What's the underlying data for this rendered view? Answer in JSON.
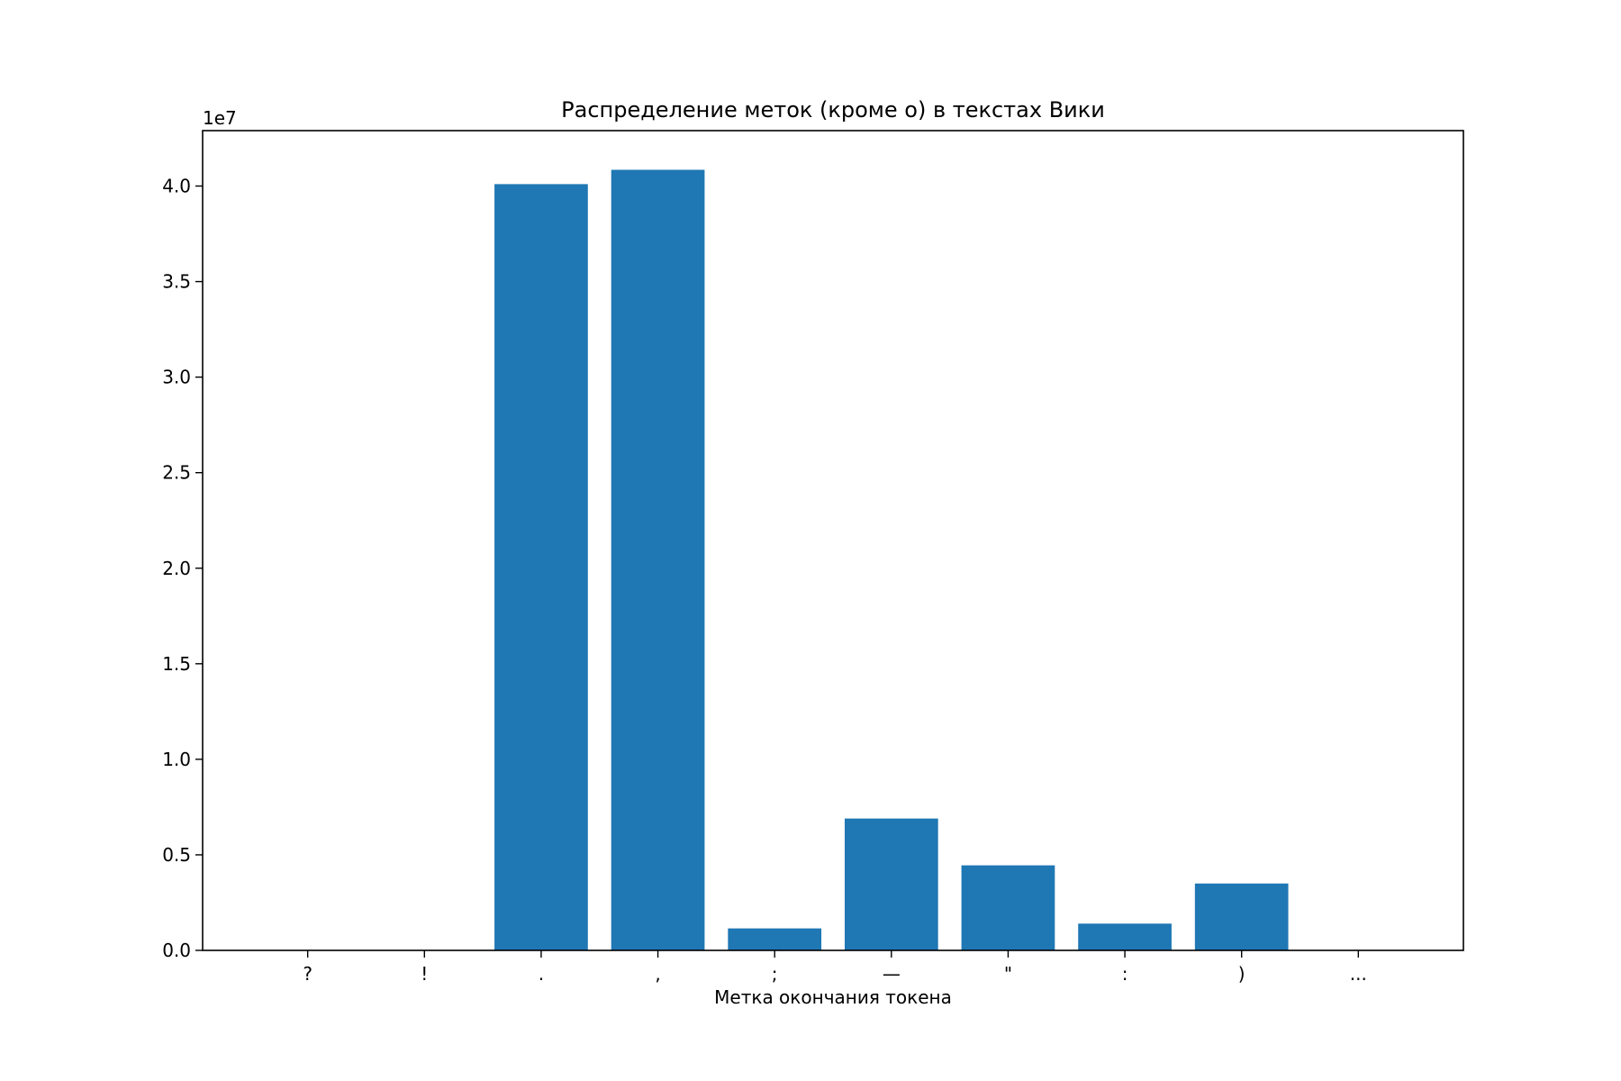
{
  "chart_data": {
    "type": "bar",
    "title": "Распределение меток (кроме o) в текстах Вики",
    "xlabel": "Метка окончания токена",
    "ylabel": "",
    "y_offset_label": "1e7",
    "categories": [
      "?",
      "!",
      ".",
      ",",
      ";",
      "—",
      "\"",
      ":",
      ")",
      "..."
    ],
    "values": [
      15000,
      10000,
      40100000,
      40850000,
      1150000,
      6900000,
      4450000,
      1400000,
      3500000,
      5000
    ],
    "ylim": [
      0,
      42900000
    ],
    "yticks": [
      0,
      5000000,
      10000000,
      15000000,
      20000000,
      25000000,
      30000000,
      35000000,
      40000000
    ],
    "ytick_labels": [
      "0.0",
      "0.5",
      "1.0",
      "1.5",
      "2.0",
      "2.5",
      "3.0",
      "3.5",
      "4.0"
    ],
    "bar_color": "#1f77b4",
    "grid": false,
    "legend": false
  }
}
